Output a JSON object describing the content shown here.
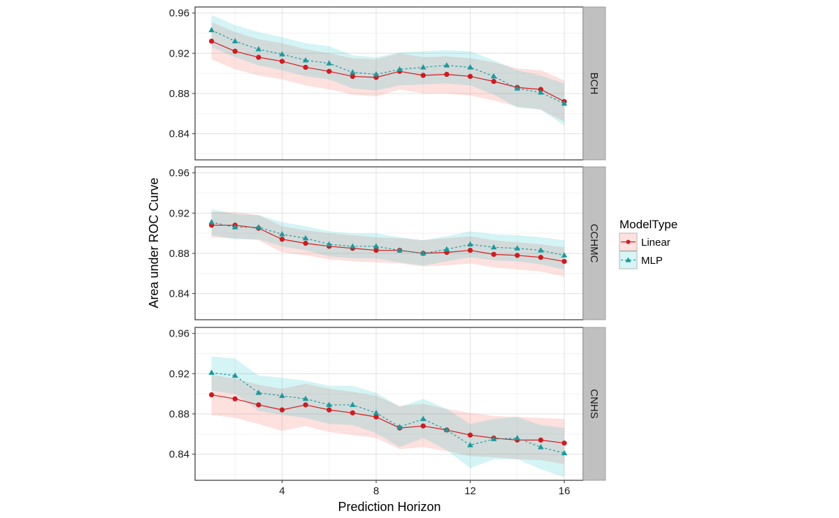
{
  "chart_data": {
    "type": "line",
    "title": "",
    "xlabel": "Prediction Horizon",
    "ylabel": "Area under ROC Curve",
    "x": [
      1,
      2,
      3,
      4,
      5,
      6,
      7,
      8,
      9,
      10,
      11,
      12,
      13,
      14,
      15,
      16
    ],
    "xlim": [
      0.3,
      16.8
    ],
    "ylim": [
      0.814,
      0.966
    ],
    "x_ticks": [
      4,
      8,
      12,
      16
    ],
    "x_tick_labels": [
      "4",
      "8",
      "12",
      "16"
    ],
    "y_ticks": [
      0.84,
      0.88,
      0.92,
      0.96
    ],
    "y_tick_labels": [
      "0.84",
      "0.88",
      "0.92",
      "0.96"
    ],
    "grid": true,
    "facet_by": "site",
    "legend": {
      "title": "ModelType",
      "placement": "right",
      "entries": [
        {
          "name": "Linear",
          "color": "#d7191c",
          "fill": "#f8766d",
          "marker": "circle",
          "line": "solid"
        },
        {
          "name": "MLP",
          "color": "#1a9a9c",
          "fill": "#00bfc4",
          "marker": "triangle",
          "line": "dashed"
        }
      ]
    },
    "panels": [
      {
        "label": "BCH",
        "series": [
          {
            "name": "Linear",
            "values": [
              0.932,
              0.922,
              0.916,
              0.912,
              0.906,
              0.902,
              0.897,
              0.896,
              0.902,
              0.898,
              0.899,
              0.897,
              0.892,
              0.886,
              0.884,
              0.872
            ],
            "lower": [
              0.914,
              0.904,
              0.898,
              0.894,
              0.888,
              0.884,
              0.879,
              0.877,
              0.884,
              0.88,
              0.88,
              0.878,
              0.873,
              0.867,
              0.864,
              0.852
            ],
            "upper": [
              0.951,
              0.941,
              0.934,
              0.93,
              0.924,
              0.92,
              0.915,
              0.914,
              0.92,
              0.916,
              0.917,
              0.915,
              0.911,
              0.905,
              0.903,
              0.893
            ]
          },
          {
            "name": "MLP",
            "values": [
              0.943,
              0.932,
              0.924,
              0.919,
              0.913,
              0.91,
              0.901,
              0.899,
              0.904,
              0.906,
              0.908,
              0.906,
              0.897,
              0.885,
              0.881,
              0.87
            ],
            "lower": [
              0.926,
              0.916,
              0.908,
              0.903,
              0.897,
              0.894,
              0.885,
              0.883,
              0.888,
              0.889,
              0.89,
              0.888,
              0.879,
              0.866,
              0.864,
              0.848
            ],
            "upper": [
              0.958,
              0.948,
              0.941,
              0.936,
              0.93,
              0.927,
              0.918,
              0.916,
              0.921,
              0.922,
              0.923,
              0.922,
              0.913,
              0.903,
              0.898,
              0.89
            ]
          }
        ]
      },
      {
        "label": "CCHMC",
        "series": [
          {
            "name": "Linear",
            "values": [
              0.908,
              0.908,
              0.905,
              0.894,
              0.89,
              0.887,
              0.885,
              0.883,
              0.883,
              0.88,
              0.881,
              0.883,
              0.879,
              0.878,
              0.876,
              0.872
            ],
            "lower": [
              0.896,
              0.895,
              0.893,
              0.881,
              0.878,
              0.874,
              0.872,
              0.871,
              0.87,
              0.867,
              0.868,
              0.87,
              0.866,
              0.864,
              0.862,
              0.857
            ],
            "upper": [
              0.921,
              0.921,
              0.918,
              0.907,
              0.903,
              0.9,
              0.898,
              0.896,
              0.895,
              0.893,
              0.895,
              0.897,
              0.893,
              0.891,
              0.889,
              0.886
            ]
          },
          {
            "name": "MLP",
            "values": [
              0.911,
              0.906,
              0.906,
              0.899,
              0.895,
              0.889,
              0.887,
              0.887,
              0.883,
              0.88,
              0.884,
              0.889,
              0.886,
              0.885,
              0.883,
              0.878
            ],
            "lower": [
              0.898,
              0.894,
              0.894,
              0.887,
              0.883,
              0.877,
              0.875,
              0.875,
              0.871,
              0.868,
              0.872,
              0.876,
              0.873,
              0.872,
              0.869,
              0.864
            ],
            "upper": [
              0.924,
              0.919,
              0.918,
              0.911,
              0.907,
              0.902,
              0.9,
              0.9,
              0.896,
              0.893,
              0.897,
              0.902,
              0.899,
              0.898,
              0.896,
              0.893
            ]
          }
        ]
      },
      {
        "label": "CNHS",
        "series": [
          {
            "name": "Linear",
            "values": [
              0.899,
              0.895,
              0.889,
              0.884,
              0.889,
              0.884,
              0.881,
              0.877,
              0.866,
              0.868,
              0.864,
              0.859,
              0.856,
              0.854,
              0.854,
              0.851
            ],
            "lower": [
              0.879,
              0.876,
              0.87,
              0.863,
              0.868,
              0.862,
              0.859,
              0.856,
              0.845,
              0.847,
              0.843,
              0.838,
              0.837,
              0.835,
              0.834,
              0.83
            ],
            "upper": [
              0.919,
              0.915,
              0.909,
              0.905,
              0.91,
              0.905,
              0.902,
              0.898,
              0.888,
              0.89,
              0.885,
              0.881,
              0.878,
              0.877,
              0.876,
              0.875
            ]
          },
          {
            "name": "MLP",
            "values": [
              0.921,
              0.918,
              0.901,
              0.898,
              0.895,
              0.889,
              0.889,
              0.881,
              0.867,
              0.875,
              0.864,
              0.849,
              0.855,
              0.856,
              0.847,
              0.841
            ],
            "lower": [
              0.903,
              0.9,
              0.883,
              0.879,
              0.876,
              0.87,
              0.869,
              0.861,
              0.847,
              0.856,
              0.844,
              0.826,
              0.835,
              0.835,
              0.825,
              0.817
            ],
            "upper": [
              0.937,
              0.935,
              0.918,
              0.916,
              0.913,
              0.908,
              0.908,
              0.901,
              0.887,
              0.895,
              0.885,
              0.87,
              0.875,
              0.877,
              0.869,
              0.866
            ]
          }
        ]
      }
    ]
  }
}
